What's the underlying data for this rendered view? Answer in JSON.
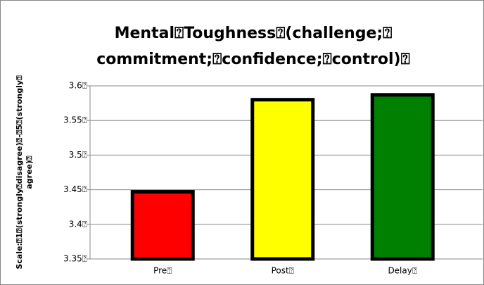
{
  "chart_data": {
    "type": "bar",
    "title": [
      "Mental⍰Toughness⍰(challenge;⍰",
      "commitment;⍰confidence;⍰control)⍰"
    ],
    "y_label": [
      "Scale:⍰1⍰(strongly⍰disagree)⍰-⍰5⍰(strongly⍰",
      "agree)⍰"
    ],
    "categories": [
      "Pre⍰",
      "Post⍰",
      "Delay⍰"
    ],
    "values": [
      3.447,
      3.58,
      3.587
    ],
    "colors": [
      "#ff0000",
      "#ffff00",
      "#008000"
    ],
    "ylim": [
      3.35,
      3.6
    ],
    "yticks": [
      {
        "value": 3.35,
        "label": "3.35⍰"
      },
      {
        "value": 3.4,
        "label": "3.4⍰"
      },
      {
        "value": 3.45,
        "label": "3.45⍰"
      },
      {
        "value": 3.5,
        "label": "3.5⍰"
      },
      {
        "value": 3.55,
        "label": "3.55⍰"
      },
      {
        "value": 3.6,
        "label": "3.6⍰"
      }
    ],
    "grid": true
  }
}
